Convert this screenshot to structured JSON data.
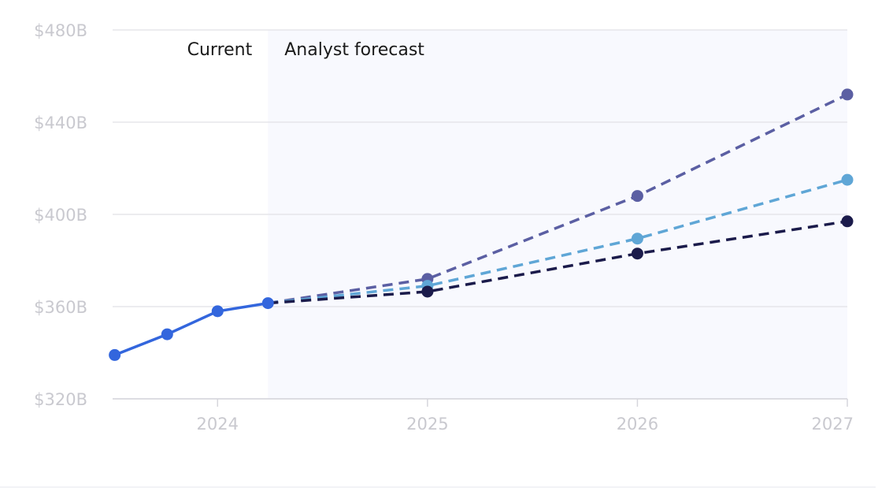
{
  "chart_data": {
    "type": "line",
    "ylim": [
      320,
      480
    ],
    "yticks": [
      {
        "value": 480,
        "label": "$480B"
      },
      {
        "value": 440,
        "label": "$440B"
      },
      {
        "value": 400,
        "label": "$400B"
      },
      {
        "value": 360,
        "label": "$360B"
      },
      {
        "value": 320,
        "label": "$320B"
      }
    ],
    "xlim": [
      2023.5,
      2027.0
    ],
    "xticks": [
      {
        "value": 2024,
        "label": "2024"
      },
      {
        "value": 2025,
        "label": "2025"
      },
      {
        "value": 2026,
        "label": "2026"
      },
      {
        "value": 2027,
        "label": "2027"
      }
    ],
    "regions": {
      "current_label": "Current",
      "forecast_label": "Analyst forecast",
      "forecast_start": 2024.24
    },
    "colors": {
      "actual": "#3366dd",
      "high": "#5b5fa3",
      "avg": "#5fa6d6",
      "low": "#1b1b4b",
      "forecast_band": "#f8f9fe",
      "grid": "#e6e6ea"
    },
    "series": [
      {
        "key": "actual",
        "style": "solid",
        "points": [
          [
            2023.51,
            339
          ],
          [
            2023.76,
            348
          ],
          [
            2024.0,
            358
          ],
          [
            2024.24,
            361.5
          ]
        ]
      },
      {
        "key": "high",
        "style": "dashed",
        "points": [
          [
            2024.24,
            361.5
          ],
          [
            2025.0,
            372
          ],
          [
            2026.0,
            408
          ],
          [
            2027.0,
            452
          ]
        ]
      },
      {
        "key": "avg",
        "style": "dashed",
        "points": [
          [
            2024.24,
            361.5
          ],
          [
            2025.0,
            369
          ],
          [
            2026.0,
            389.5
          ],
          [
            2027.0,
            415
          ]
        ]
      },
      {
        "key": "low",
        "style": "dashed",
        "points": [
          [
            2024.24,
            361.5
          ],
          [
            2025.0,
            366.5
          ],
          [
            2026.0,
            383
          ],
          [
            2027.0,
            397
          ]
        ]
      }
    ]
  }
}
